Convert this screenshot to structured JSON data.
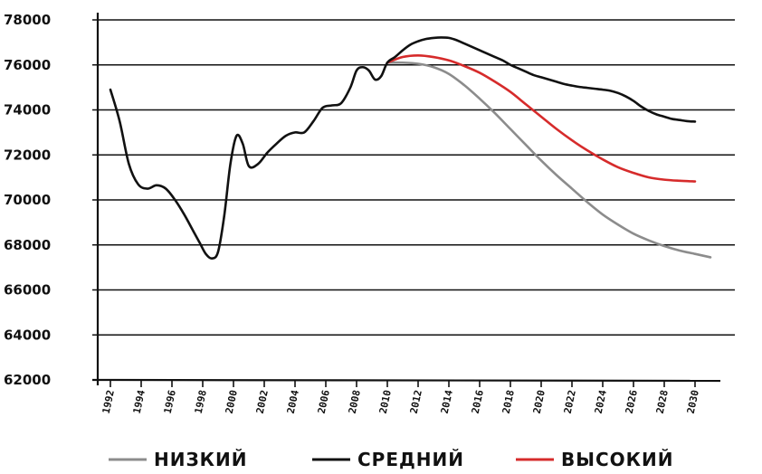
{
  "chart_data": {
    "type": "line",
    "title": "",
    "xlabel": "",
    "ylabel": "",
    "xlim": [
      1992,
      2030
    ],
    "ylim": [
      62000,
      78000
    ],
    "yticks": [
      "62000",
      "64000",
      "66000",
      "68000",
      "70000",
      "72000",
      "74000",
      "76000",
      "78000"
    ],
    "xticks": [
      "1992",
      "1994",
      "1996",
      "1998",
      "2000",
      "2002",
      "2004",
      "2006",
      "2008",
      "2010",
      "2012",
      "2014",
      "2016",
      "2018",
      "2020",
      "2022",
      "2024",
      "2026",
      "2028",
      "2030"
    ],
    "grid": "horizontal",
    "legend_position": "bottom",
    "series": [
      {
        "name": "СРЕДНИЙ",
        "color": "#111111",
        "x": [
          1992,
          1992.6,
          1993.2,
          1993.8,
          1994.4,
          1995,
          1995.6,
          1996.2,
          1996.8,
          1997.4,
          1997.8,
          1998.2,
          1998.6,
          1999,
          1999.4,
          1999.8,
          2000.2,
          2000.6,
          2001,
          2001.6,
          2002.2,
          2002.8,
          2003.4,
          2004,
          2004.6,
          2005.2,
          2005.8,
          2006.4,
          2007,
          2007.6,
          2008,
          2008.4,
          2008.8,
          2009.2,
          2009.6,
          2010,
          2010.5,
          2011,
          2011.5,
          2012,
          2012.5,
          2013,
          2013.5,
          2014,
          2014.5,
          2015,
          2015.5,
          2016,
          2016.5,
          2017,
          2017.5,
          2018,
          2018.5,
          2019,
          2019.5,
          2020,
          2020.5,
          2021,
          2021.5,
          2022,
          2022.5,
          2023,
          2023.5,
          2024,
          2024.5,
          2025,
          2025.5,
          2026,
          2026.5,
          2027,
          2027.5,
          2028,
          2028.5,
          2029,
          2029.5,
          2030
        ],
        "y": [
          74900,
          73500,
          71600,
          70700,
          70500,
          70650,
          70500,
          70000,
          69350,
          68600,
          68100,
          67600,
          67400,
          67700,
          69300,
          71600,
          72850,
          72500,
          71500,
          71600,
          72100,
          72500,
          72850,
          73000,
          73000,
          73500,
          74100,
          74200,
          74300,
          75000,
          75750,
          75900,
          75750,
          75350,
          75500,
          76100,
          76350,
          76650,
          76900,
          77050,
          77150,
          77200,
          77220,
          77200,
          77100,
          76950,
          76800,
          76650,
          76500,
          76350,
          76200,
          76000,
          75850,
          75700,
          75550,
          75450,
          75350,
          75250,
          75150,
          75080,
          75020,
          74980,
          74940,
          74900,
          74850,
          74750,
          74600,
          74400,
          74150,
          73950,
          73800,
          73700,
          73600,
          73550,
          73500,
          73480
        ]
      },
      {
        "name": "НИЗКИЙ",
        "color": "#8c8c8c",
        "x": [
          2010,
          2011,
          2012,
          2013,
          2014,
          2015,
          2016,
          2017,
          2018,
          2019,
          2020,
          2021,
          2022,
          2023,
          2024,
          2025,
          2026,
          2027,
          2028,
          2029,
          2030,
          2031
        ],
        "y": [
          76100,
          76100,
          76050,
          75900,
          75600,
          75100,
          74500,
          73850,
          73150,
          72450,
          71750,
          71100,
          70500,
          69900,
          69350,
          68900,
          68500,
          68200,
          67950,
          67750,
          67600,
          67450
        ]
      },
      {
        "name": "ВЫСОКИЙ",
        "color": "#d62b2b",
        "x": [
          2010,
          2011,
          2012,
          2013,
          2014,
          2015,
          2016,
          2017,
          2018,
          2019,
          2020,
          2021,
          2022,
          2023,
          2024,
          2025,
          2026,
          2027,
          2028,
          2029,
          2030
        ],
        "y": [
          76100,
          76350,
          76420,
          76350,
          76200,
          75950,
          75650,
          75250,
          74800,
          74250,
          73700,
          73150,
          72650,
          72200,
          71800,
          71450,
          71200,
          71000,
          70900,
          70850,
          70820
        ]
      }
    ]
  },
  "legend": [
    {
      "label": "НИЗКИЙ",
      "color": "#8c8c8c"
    },
    {
      "label": "СРЕДНИЙ",
      "color": "#111111"
    },
    {
      "label": "ВЫСОКИЙ",
      "color": "#d62b2b"
    }
  ]
}
